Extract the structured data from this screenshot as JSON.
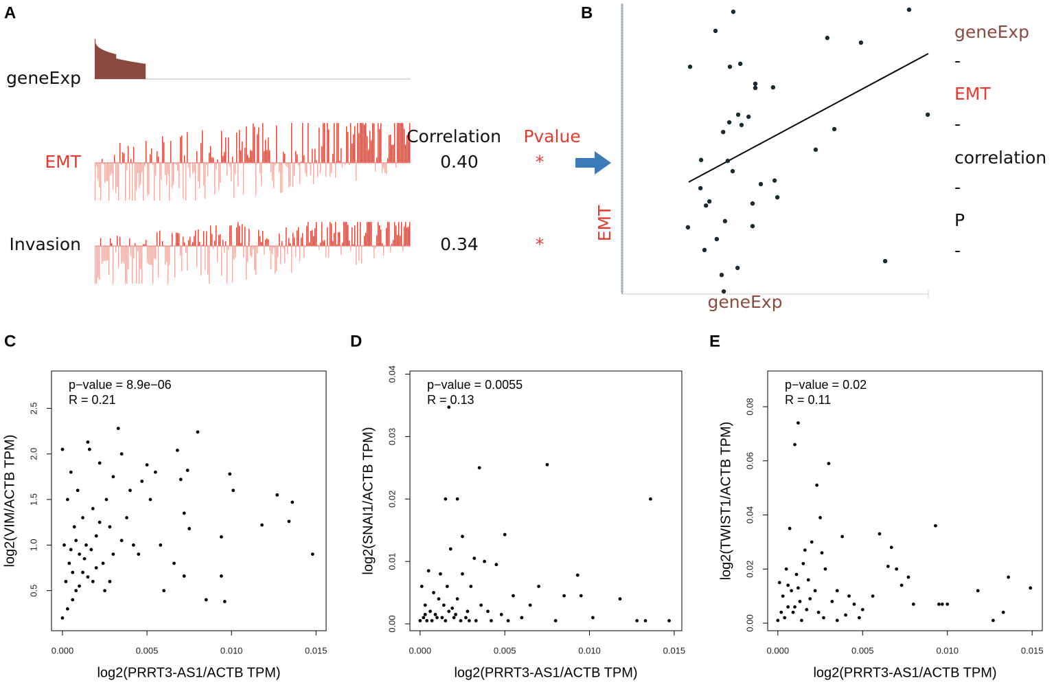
{
  "panel_labels": [
    "A",
    "B",
    "C",
    "D",
    "E"
  ],
  "panel_a": {
    "tracks": [
      "geneExp",
      "EMT",
      "Invasion"
    ],
    "headers": [
      "Correlation",
      "Pvalue"
    ],
    "rows": [
      {
        "correlation": "0.40",
        "pvalue": "*"
      },
      {
        "correlation": "0.34",
        "pvalue": "*"
      }
    ]
  },
  "panel_b": {
    "legend": [
      "geneExp",
      "-",
      "EMT",
      "-",
      "correlation",
      "-",
      "P",
      "-"
    ]
  },
  "chart_data": [
    {
      "type": "scatter",
      "xlabel": "geneExp",
      "ylabel": "EMT",
      "xlim": [
        0,
        1
      ],
      "ylim": [
        0,
        1
      ],
      "color": "#1a2a33",
      "x": [
        0.363,
        0.937,
        0.305,
        0.67,
        0.78,
        0.222,
        0.352,
        0.386,
        0.435,
        0.435,
        0.493,
        0.379,
        0.413,
        0.35,
        0.39,
        0.33,
        0.693,
        0.998,
        0.632,
        0.258,
        0.345,
        0.361,
        0.453,
        0.498,
        0.256,
        0.285,
        0.274,
        0.507,
        0.426,
        0.336,
        0.215,
        0.426,
        0.309,
        0.269,
        0.859,
        0.377,
        0.325,
        0.332
      ],
      "values": [
        0.96,
        0.967,
        0.895,
        0.871,
        0.855,
        0.773,
        0.773,
        0.783,
        0.715,
        0.701,
        0.703,
        0.61,
        0.603,
        0.584,
        0.575,
        0.551,
        0.561,
        0.61,
        0.491,
        0.456,
        0.453,
        0.418,
        0.374,
        0.386,
        0.36,
        0.315,
        0.301,
        0.329,
        0.308,
        0.248,
        0.227,
        0.231,
        0.187,
        0.15,
        0.112,
        0.089,
        0.065,
        0.009
      ]
    },
    {
      "type": "scatter",
      "xlabel": "log2(PRRT3-AS1/ACTB TPM)",
      "ylabel": "log2(VIM/ACTB TPM)",
      "annotations": [
        "p−value = 8.9e−06",
        "R = 0.21"
      ],
      "color": "#000000",
      "xlim": [
        -0.00065,
        0.0156
      ],
      "ylim": [
        0.06,
        2.91
      ],
      "xticks": [
        {
          "value": 0,
          "label": "0.000"
        },
        0.005,
        {
          "value": 0.01,
          "label": "0.010"
        },
        0.015
      ],
      "yticks": [
        0.5,
        {
          "value": 1,
          "label": "1.0"
        },
        1.5,
        {
          "value": 2,
          "label": "2.0"
        },
        2.5
      ],
      "x": [
        0.0148,
        0.0136,
        0.0127,
        0.0134,
        0.0118,
        0.0101,
        0.0099,
        0.0094,
        0.0094,
        0.0096,
        0.0085,
        0.008,
        0.0075,
        0.0074,
        0.007,
        0.0068,
        0.0072,
        0.0072,
        0.0066,
        0.006,
        0.0058,
        0.0055,
        0.0052,
        0.005,
        0.0047,
        0.0045,
        0.0042,
        0.004,
        0.0038,
        0.0035,
        0.0033,
        0.003,
        0.0028,
        0.0026,
        0.0024,
        0.0022,
        0.002,
        0.0018,
        0.0016,
        0.0015,
        0.0014,
        0.0012,
        0.0012,
        0.001,
        0.0009,
        0.0008,
        0.0007,
        0.0006,
        0.0005,
        0.0004,
        0.0003,
        0.0002,
        0.0001,
        0.0,
        0.0,
        0.0003,
        0.0025,
        0.003,
        0.0015,
        0.001,
        0.002,
        0.0035,
        0.0008,
        0.0018,
        0.0028,
        0.0005,
        0.0013,
        0.0022,
        0.0006,
        0.0017
      ],
      "values": [
        0.9,
        1.47,
        1.55,
        1.26,
        1.22,
        1.6,
        1.78,
        1.09,
        0.66,
        0.38,
        0.4,
        2.24,
        1.18,
        1.82,
        1.72,
        2.04,
        1.35,
        0.66,
        0.8,
        0.5,
        1.0,
        1.8,
        1.5,
        1.88,
        1.7,
        0.9,
        1.0,
        1.6,
        1.3,
        2.0,
        2.28,
        1.75,
        1.2,
        1.5,
        0.8,
        1.9,
        1.1,
        0.6,
        2.05,
        2.13,
        1.0,
        1.3,
        0.7,
        0.9,
        1.6,
        0.5,
        1.2,
        0.4,
        1.8,
        0.8,
        1.5,
        0.6,
        1.0,
        2.05,
        0.2,
        0.3,
        0.5,
        0.9,
        0.65,
        0.55,
        0.75,
        1.05,
        1.05,
        1.4,
        0.6,
        0.95,
        0.85,
        1.25,
        0.7,
        0.95
      ]
    },
    {
      "type": "scatter",
      "xlabel": "log2(PRRT3-AS1/ACTB TPM)",
      "ylabel": "log2(SNAI1/ACTB TPM)",
      "annotations": [
        "p−value = 0.0055",
        "R = 0.13"
      ],
      "color": "#000000",
      "xlim": [
        -0.0006,
        0.01545
      ],
      "ylim": [
        -0.0011,
        0.0405
      ],
      "xticks": [
        {
          "value": 0,
          "label": "0.000"
        },
        0.005,
        {
          "value": 0.01,
          "label": "0.010"
        },
        0.015
      ],
      "yticks": [
        {
          "value": 0,
          "label": "0.00"
        },
        0.01,
        0.02,
        0.03,
        0.04
      ],
      "x": [
        0.0136,
        0.0075,
        0.0035,
        0.0017,
        0.0015,
        0.0022,
        0.005,
        0.0025,
        0.0093,
        0.0095,
        0.0118,
        0.0133,
        0.0147,
        0.0128,
        0.0102,
        0.0085,
        0.008,
        0.007,
        0.0065,
        0.006,
        0.0055,
        0.0045,
        0.004,
        0.0038,
        0.0032,
        0.003,
        0.0028,
        0.0025,
        0.0022,
        0.002,
        0.0018,
        0.0016,
        0.0014,
        0.0012,
        0.001,
        0.0008,
        0.0006,
        0.0005,
        0.0004,
        0.0003,
        0.0002,
        0.0001,
        0.0,
        0.0007,
        0.0011,
        0.0015,
        0.0019,
        0.0024,
        0.0027,
        0.0033,
        0.0036,
        0.0042,
        0.0048,
        0.0052,
        0.0009,
        0.0013,
        0.0021,
        0.0017,
        0.0029,
        0.0003
      ],
      "values": [
        0.02,
        0.0255,
        0.025,
        0.0347,
        0.02,
        0.02,
        0.0143,
        0.014,
        0.0078,
        0.0045,
        0.004,
        0.0005,
        0.0005,
        0.0005,
        0.001,
        0.0045,
        0.0005,
        0.006,
        0.003,
        0.001,
        0.0045,
        0.0095,
        0.002,
        0.01,
        0.0105,
        0.006,
        0.002,
        0.008,
        0.004,
        0.001,
        0.012,
        0.006,
        0.003,
        0.008,
        0.001,
        0.005,
        0.002,
        0.0085,
        0.0005,
        0.003,
        0.001,
        0.006,
        0.0005,
        0.0005,
        0.004,
        0.0005,
        0.0025,
        0.0005,
        0.001,
        0.0005,
        0.003,
        0.0005,
        0.0015,
        0.0005,
        0.0015,
        0.001,
        0.0015,
        0.002,
        0.0005,
        0.0015
      ]
    },
    {
      "type": "scatter",
      "xlabel": "log2(PRRT3-AS1/ACTB TPM)",
      "ylabel": "log2(TWIST1/ACTB TPM)",
      "annotations": [
        "p−value = 0.02",
        "R = 0.11"
      ],
      "color": "#000000",
      "xlim": [
        -0.0006,
        0.0156
      ],
      "ylim": [
        -0.0028,
        0.0932
      ],
      "xticks": [
        {
          "value": 0,
          "label": "0.000"
        },
        0.005,
        {
          "value": 0.01,
          "label": "0.010"
        },
        0.015
      ],
      "yticks": [
        {
          "value": 0,
          "label": "0.00"
        },
        0.02,
        0.04,
        0.06,
        0.08
      ],
      "x": [
        0.0149,
        0.0136,
        0.0133,
        0.0127,
        0.0118,
        0.01,
        0.0097,
        0.0095,
        0.0093,
        0.008,
        0.0077,
        0.0073,
        0.007,
        0.0067,
        0.0065,
        0.006,
        0.0056,
        0.005,
        0.0045,
        0.0038,
        0.0035,
        0.003,
        0.0025,
        0.0023,
        0.0012,
        0.001,
        0.0007,
        0.002,
        0.0018,
        0.0015,
        0.0013,
        0.0011,
        0.0009,
        0.0008,
        0.0006,
        0.0005,
        0.0004,
        0.0003,
        0.0002,
        0.0001,
        0.0,
        0.0028,
        0.0032,
        0.0027,
        0.0022,
        0.0017,
        0.0014,
        0.0019,
        0.0024,
        0.004,
        0.0042,
        0.0048,
        0.0012,
        0.0016,
        0.0026,
        0.0035,
        0.001,
        0.0006
      ],
      "values": [
        0.013,
        0.017,
        0.004,
        0.001,
        0.012,
        0.007,
        0.007,
        0.007,
        0.036,
        0.007,
        0.017,
        0.014,
        0.02,
        0.028,
        0.021,
        0.033,
        0.01,
        0.005,
        0.007,
        0.032,
        0.012,
        0.059,
        0.039,
        0.051,
        0.074,
        0.066,
        0.035,
        0.03,
        0.016,
        0.022,
        0.008,
        0.018,
        0.004,
        0.012,
        0.006,
        0.02,
        0.002,
        0.01,
        0.004,
        0.015,
        0.001,
        0.02,
        0.008,
        0.002,
        0.012,
        0.005,
        0.001,
        0.009,
        0.004,
        0.003,
        0.01,
        0.002,
        0.013,
        0.027,
        0.026,
        0.001,
        0.006,
        0.014
      ]
    }
  ]
}
